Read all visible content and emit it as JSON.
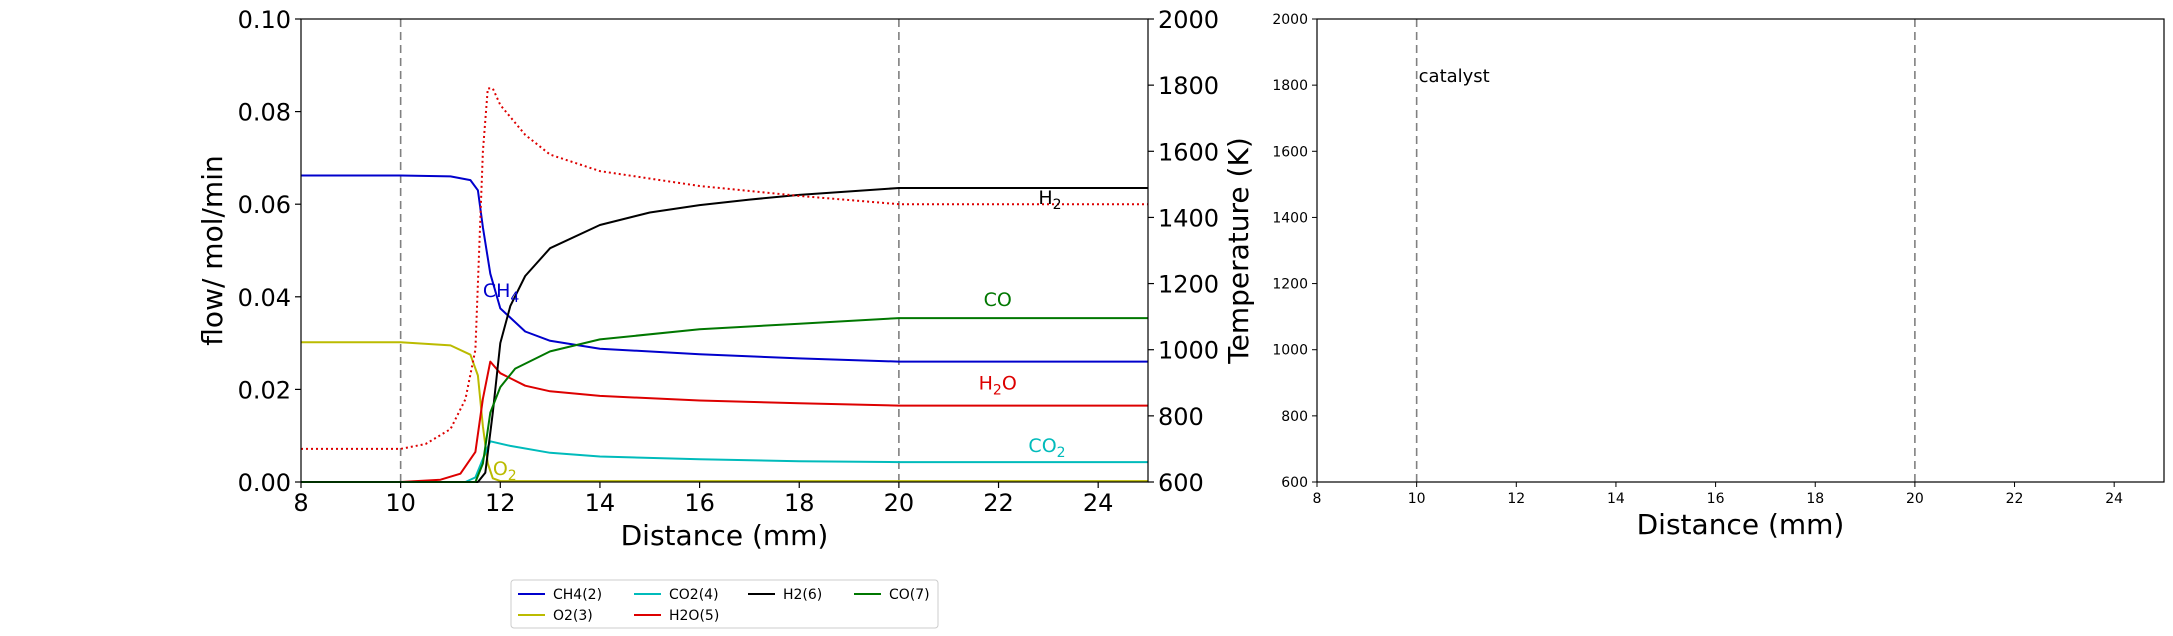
{
  "chart_data": [
    {
      "type": "line",
      "xlabel": "Distance (mm)",
      "ylabel": "flow/ mol/min",
      "y2label": "Temperature (K)",
      "xlim": [
        8,
        25
      ],
      "ylim": [
        0,
        0.1
      ],
      "y2lim": [
        600,
        2000
      ],
      "xticks": [
        "8",
        "10",
        "12",
        "14",
        "16",
        "18",
        "20",
        "22",
        "24"
      ],
      "yticks": [
        "0.00",
        "0.02",
        "0.04",
        "0.06",
        "0.08",
        "0.10"
      ],
      "y2ticks": [
        "600",
        "800",
        "1000",
        "1200",
        "1400",
        "1600",
        "1800",
        "2000"
      ],
      "grid": false,
      "vlines": [
        10,
        20
      ],
      "series": [
        {
          "name": "CH4(2)",
          "color": "#0000cc",
          "x": [
            8,
            10,
            11,
            11.4,
            11.55,
            11.65,
            11.8,
            12,
            12.5,
            13,
            14,
            16,
            18,
            20,
            25
          ],
          "y": [
            0.0662,
            0.0662,
            0.066,
            0.0652,
            0.063,
            0.055,
            0.045,
            0.0375,
            0.0325,
            0.0305,
            0.0288,
            0.0276,
            0.0267,
            0.026,
            0.026
          ]
        },
        {
          "name": "O2(3)",
          "color": "#bbbb00",
          "x": [
            8,
            10,
            11,
            11.4,
            11.55,
            11.65,
            11.75,
            11.85,
            12,
            25
          ],
          "y": [
            0.0302,
            0.0302,
            0.0295,
            0.0275,
            0.023,
            0.012,
            0.004,
            0.0008,
            0.0002,
            0.0002
          ]
        },
        {
          "name": "CO2(4)",
          "color": "#00bbbb",
          "x": [
            8,
            11.3,
            11.5,
            11.65,
            11.8,
            12.2,
            13,
            14,
            16,
            18,
            20,
            25
          ],
          "y": [
            0,
            0,
            0.001,
            0.005,
            0.0088,
            0.0078,
            0.0063,
            0.0055,
            0.0049,
            0.0045,
            0.0043,
            0.0043
          ]
        },
        {
          "name": "H2O(5)",
          "color": "#dd0000",
          "x": [
            8,
            10,
            10.8,
            11.2,
            11.5,
            11.65,
            11.8,
            12,
            12.5,
            13,
            14,
            16,
            18,
            20,
            25
          ],
          "y": [
            0,
            0,
            0.0005,
            0.0018,
            0.0065,
            0.018,
            0.026,
            0.0235,
            0.0208,
            0.0196,
            0.0186,
            0.0176,
            0.017,
            0.0165,
            0.0165
          ]
        },
        {
          "name": "H2(6)",
          "color": "#000000",
          "x": [
            8,
            11.55,
            11.7,
            11.85,
            12,
            12.2,
            12.5,
            13,
            14,
            15,
            16,
            17,
            18,
            20,
            25
          ],
          "y": [
            0,
            0,
            0.002,
            0.015,
            0.03,
            0.038,
            0.0445,
            0.0505,
            0.0555,
            0.0582,
            0.0598,
            0.061,
            0.062,
            0.0635,
            0.0635
          ]
        },
        {
          "name": "CO(7)",
          "color": "#007700",
          "x": [
            8,
            11.5,
            11.65,
            11.8,
            12,
            12.3,
            13,
            14,
            16,
            18,
            20,
            25
          ],
          "y": [
            0,
            0,
            0.004,
            0.015,
            0.0205,
            0.0245,
            0.0282,
            0.0308,
            0.033,
            0.0342,
            0.0354,
            0.0354
          ]
        },
        {
          "name": "",
          "color": "#dd0000",
          "dotted": true,
          "axis": "y2",
          "x": [
            8,
            10,
            10.5,
            11,
            11.3,
            11.5,
            11.65,
            11.75,
            11.85,
            12,
            12.5,
            13,
            14,
            16,
            18,
            20,
            25
          ],
          "y": [
            700,
            700,
            715,
            760,
            850,
            1000,
            1600,
            1790,
            1790,
            1740,
            1650,
            1590,
            1540,
            1495,
            1465,
            1440,
            1440
          ]
        }
      ],
      "annotations": [
        {
          "text": "H",
          "sub": "2",
          "x": 22.8,
          "y": 0.06,
          "color": "#000000"
        },
        {
          "text": "CH",
          "sub": "4",
          "x": 11.65,
          "y": 0.04,
          "color": "#0000cc"
        },
        {
          "text": "CO",
          "sub": "",
          "x": 21.7,
          "y": 0.038,
          "color": "#007700"
        },
        {
          "text": "H",
          "sub": "2",
          "tail": "O",
          "x": 21.6,
          "y": 0.02,
          "color": "#dd0000"
        },
        {
          "text": "CO",
          "sub": "2",
          "x": 22.6,
          "y": 0.0065,
          "color": "#00bbbb"
        },
        {
          "text": "O",
          "sub": "2",
          "x": 11.85,
          "y": 0.0015,
          "color": "#bbbb00"
        }
      ]
    },
    {
      "type": "line",
      "xlabel": "Distance (mm)",
      "xlim": [
        8,
        25
      ],
      "ylim": [
        600,
        2000
      ],
      "xticks": [
        "8",
        "10",
        "12",
        "14",
        "16",
        "18",
        "20",
        "22",
        "24"
      ],
      "yticks": [
        "600",
        "800",
        "1000",
        "1200",
        "1400",
        "1600",
        "1800",
        "2000"
      ],
      "grid": false,
      "vlines": [
        10,
        20
      ],
      "annotation": "catalyst",
      "series": []
    }
  ],
  "legend": {
    "placement": "bottom-center",
    "entries": [
      {
        "label": "CH4(2)",
        "color": "#0000cc"
      },
      {
        "label": "CO2(4)",
        "color": "#00bbbb"
      },
      {
        "label": "H2(6)",
        "color": "#000000"
      },
      {
        "label": "CO(7)",
        "color": "#007700"
      },
      {
        "label": "O2(3)",
        "color": "#bbbb00"
      },
      {
        "label": "H2O(5)",
        "color": "#dd0000"
      }
    ]
  }
}
